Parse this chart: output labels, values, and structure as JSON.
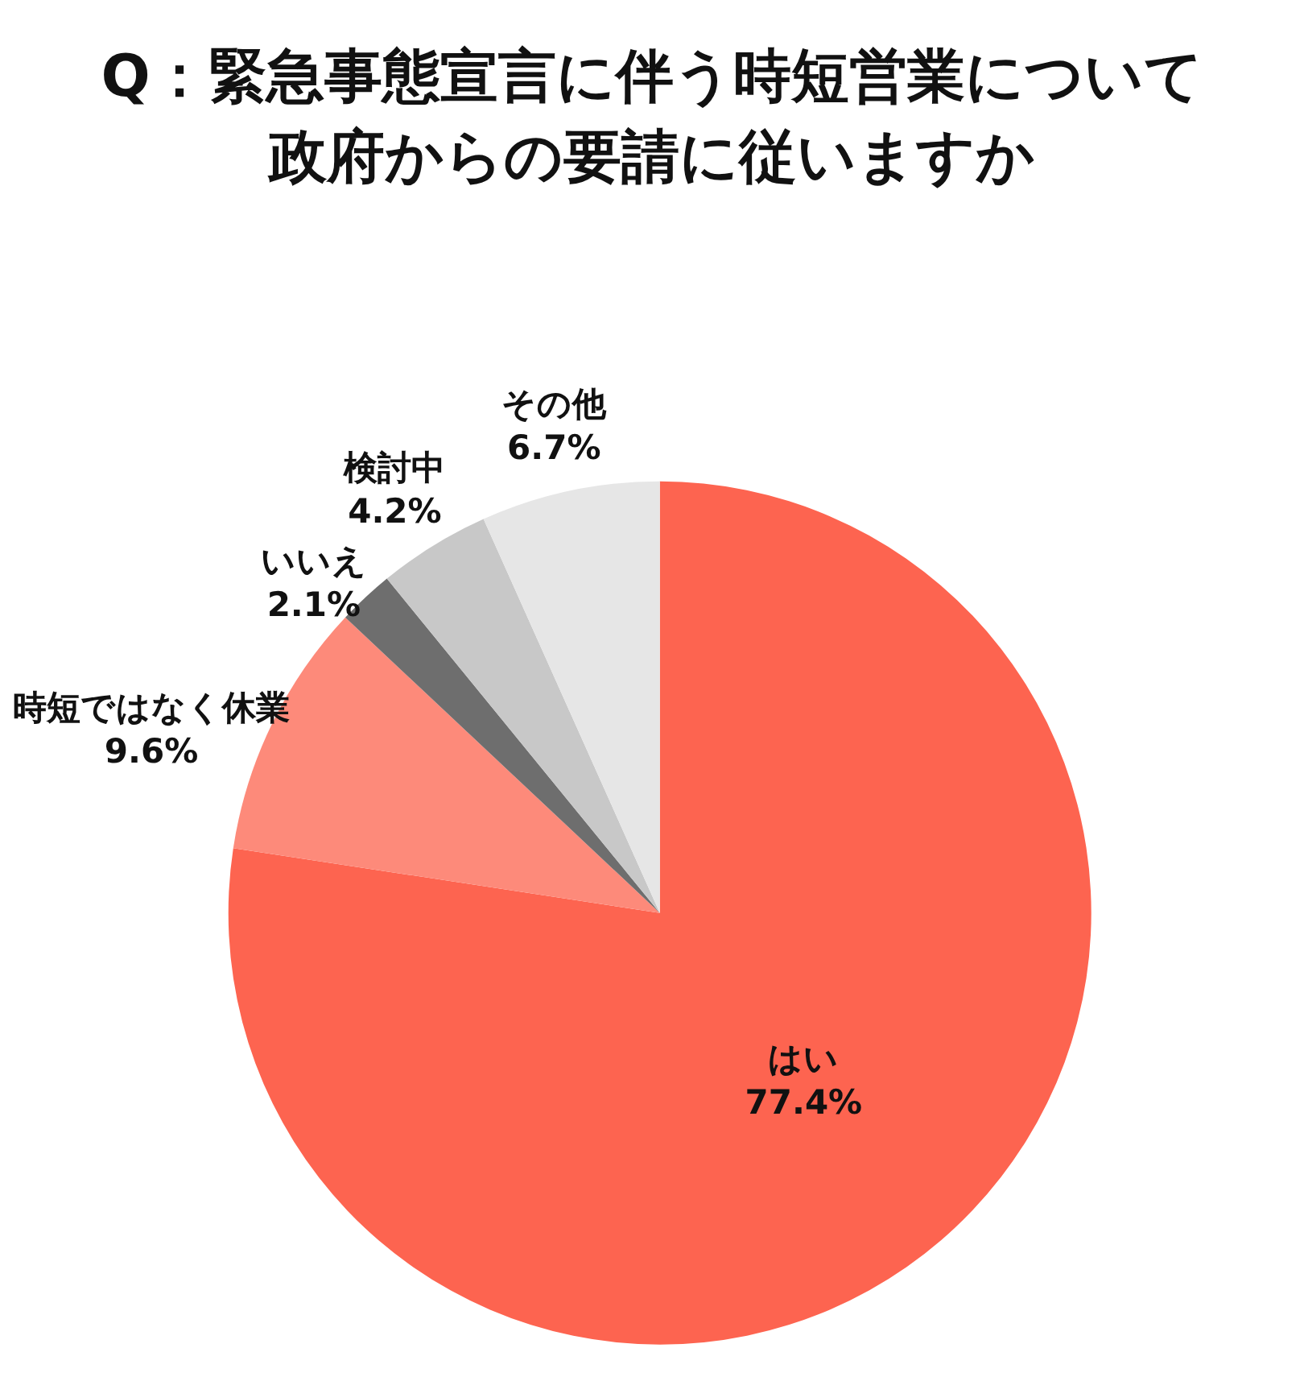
{
  "chart_data": {
    "type": "pie",
    "title": "Q：緊急事態宣言に伴う時短営業について政府からの要請に従いますか",
    "categories": [
      "はい",
      "時短ではなく休業",
      "いいえ",
      "検討中",
      "その他"
    ],
    "values": [
      77.4,
      9.6,
      2.1,
      4.2,
      6.7
    ],
    "colors": [
      "#fd6450",
      "#fd8a7a",
      "#6e6e6e",
      "#c8c8c8",
      "#e6e6e6"
    ],
    "value_labels": [
      "77.4%",
      "9.6%",
      "2.1%",
      "4.2%",
      "6.7%"
    ],
    "legend": false
  }
}
